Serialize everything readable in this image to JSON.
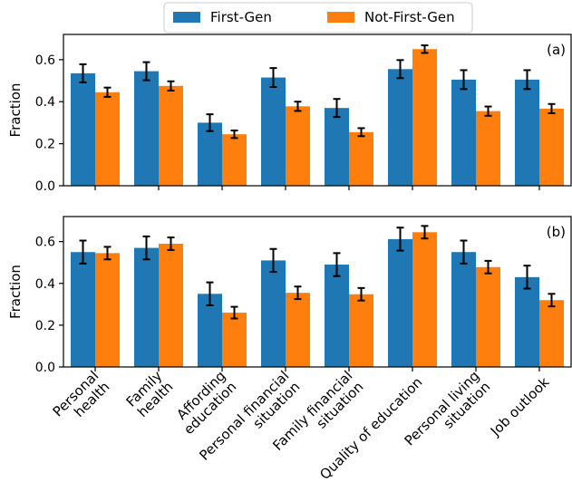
{
  "legend": {
    "placement": "top-center",
    "items": [
      {
        "label": "First-Gen",
        "color": "#1f77b4"
      },
      {
        "label": "Not-First-Gen",
        "color": "#ff7f0e"
      }
    ]
  },
  "chart_data": [
    {
      "type": "bar",
      "panel_label": "(a)",
      "ylabel": "Fraction",
      "ylim": [
        0,
        0.72
      ],
      "yticks": [
        "0.0",
        "0.2",
        "0.4",
        "0.6"
      ],
      "grid": false,
      "categories": [
        "Personal\nhealth",
        "Family\nhealth",
        "Affording\neducation",
        "Personal financial\nsituation",
        "Family financial\nsituation",
        "Quality of education",
        "Personal living\nsituation",
        "Job outlook"
      ],
      "series": [
        {
          "name": "First-Gen",
          "color": "#1f77b4",
          "values": [
            0.535,
            0.545,
            0.3,
            0.515,
            0.37,
            0.555,
            0.505,
            0.505
          ],
          "errors": [
            0.043,
            0.043,
            0.04,
            0.045,
            0.043,
            0.043,
            0.045,
            0.045
          ]
        },
        {
          "name": "Not-First-Gen",
          "color": "#ff7f0e",
          "values": [
            0.445,
            0.475,
            0.245,
            0.378,
            0.255,
            0.65,
            0.355,
            0.367
          ],
          "errors": [
            0.022,
            0.022,
            0.018,
            0.022,
            0.019,
            0.018,
            0.022,
            0.022
          ]
        }
      ]
    },
    {
      "type": "bar",
      "panel_label": "(b)",
      "ylabel": "Fraction",
      "ylim": [
        0,
        0.72
      ],
      "yticks": [
        "0.0",
        "0.2",
        "0.4",
        "0.6"
      ],
      "grid": false,
      "categories": [
        "Personal\nhealth",
        "Family\nhealth",
        "Affording\neducation",
        "Personal financial\nsituation",
        "Family financial\nsituation",
        "Quality of education",
        "Personal living\nsituation",
        "Job outlook"
      ],
      "series": [
        {
          "name": "First-Gen",
          "color": "#1f77b4",
          "values": [
            0.55,
            0.57,
            0.35,
            0.51,
            0.49,
            0.612,
            0.55,
            0.43
          ],
          "errors": [
            0.055,
            0.055,
            0.055,
            0.055,
            0.055,
            0.055,
            0.055,
            0.055
          ]
        },
        {
          "name": "Not-First-Gen",
          "color": "#ff7f0e",
          "values": [
            0.545,
            0.59,
            0.26,
            0.355,
            0.348,
            0.645,
            0.478,
            0.32
          ],
          "errors": [
            0.03,
            0.03,
            0.028,
            0.03,
            0.03,
            0.03,
            0.03,
            0.03
          ]
        }
      ]
    }
  ]
}
